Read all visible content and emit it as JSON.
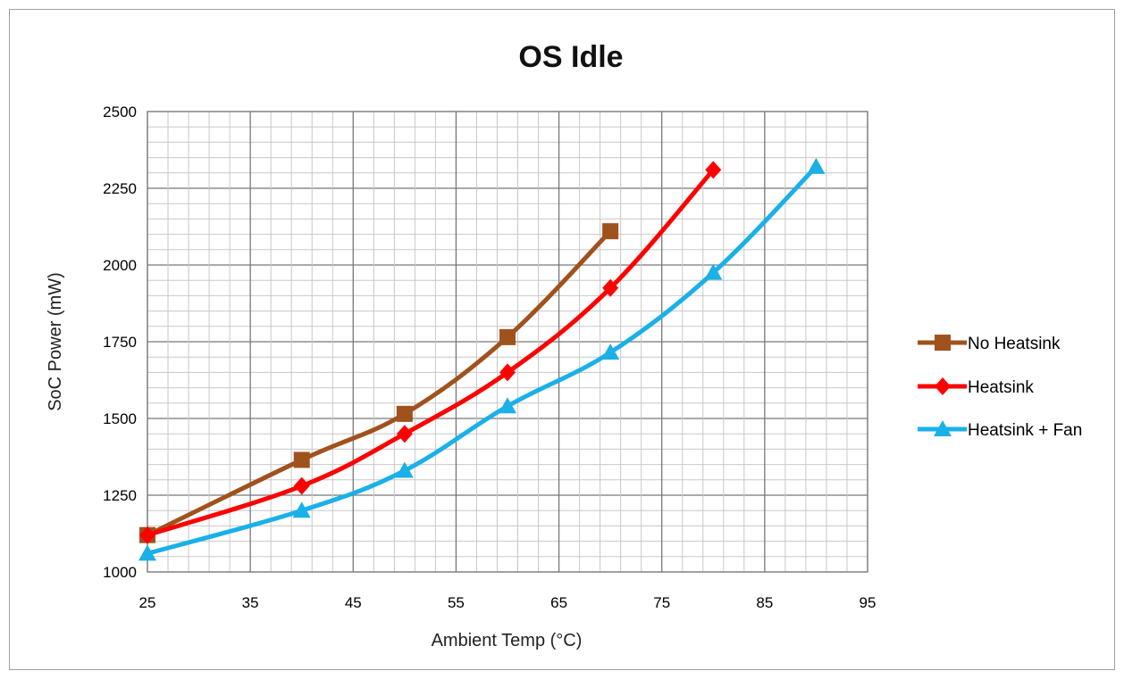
{
  "chart_data": {
    "type": "line",
    "title": "OS Idle",
    "xlabel": "Ambient Temp (°C)",
    "ylabel": "SoC Power (mW)",
    "xlim": [
      25,
      95
    ],
    "ylim": [
      1000,
      2500
    ],
    "xticks": [
      25,
      35,
      45,
      55,
      65,
      75,
      85,
      95
    ],
    "yticks": [
      1000,
      1250,
      1500,
      1750,
      2000,
      2250,
      2500
    ],
    "grid": true,
    "legend_position": "right",
    "series": [
      {
        "name": "No Heatsink",
        "color": "#a0521d",
        "marker": "square",
        "x": [
          25,
          40,
          50,
          60,
          70
        ],
        "y": [
          1120,
          1365,
          1515,
          1765,
          2110
        ]
      },
      {
        "name": "Heatsink",
        "color": "#ff0000",
        "marker": "diamond",
        "x": [
          25,
          40,
          50,
          60,
          70,
          80
        ],
        "y": [
          1120,
          1280,
          1450,
          1650,
          1925,
          2310
        ]
      },
      {
        "name": "Heatsink + Fan",
        "color": "#1ab0e8",
        "marker": "triangle",
        "x": [
          25,
          40,
          50,
          60,
          70,
          80,
          90
        ],
        "y": [
          1060,
          1200,
          1330,
          1540,
          1715,
          1975,
          2320
        ]
      }
    ]
  }
}
